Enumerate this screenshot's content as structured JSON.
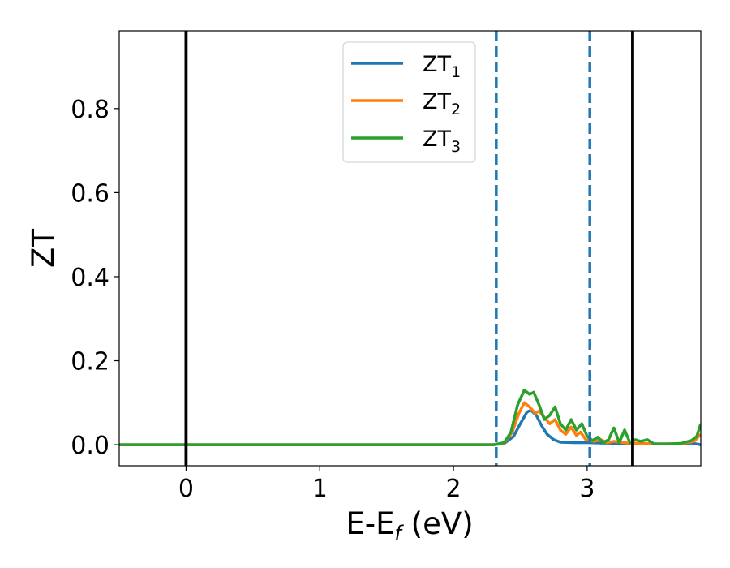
{
  "chart_data": {
    "type": "line",
    "title": "",
    "xlabel": {
      "main": "E-E",
      "sub": "f",
      "suffix": " (eV)"
    },
    "ylabel": "ZT",
    "xlim": [
      -0.5,
      3.85
    ],
    "ylim": [
      -0.05,
      0.985
    ],
    "xticks": [
      0,
      1,
      2,
      3
    ],
    "xtick_labels": [
      "0",
      "1",
      "2",
      "3"
    ],
    "yticks": [
      0.0,
      0.2,
      0.4,
      0.6,
      0.8
    ],
    "ytick_labels": [
      "0.0",
      "0.2",
      "0.4",
      "0.6",
      "0.8"
    ],
    "grid": false,
    "legend_position": "top-center",
    "vlines": [
      {
        "x": 0.0,
        "style": "solid",
        "color": "#000000"
      },
      {
        "x": 3.34,
        "style": "solid",
        "color": "#000000"
      },
      {
        "x": 2.32,
        "style": "dashed",
        "color": "#1f77b4"
      },
      {
        "x": 3.02,
        "style": "dashed",
        "color": "#1f77b4"
      }
    ],
    "series": [
      {
        "name": "ZT",
        "sub": "1",
        "color": "#1f77b4",
        "points": [
          [
            -0.5,
            0
          ],
          [
            2.3,
            0
          ],
          [
            2.38,
            0.003
          ],
          [
            2.45,
            0.02
          ],
          [
            2.5,
            0.05
          ],
          [
            2.55,
            0.078
          ],
          [
            2.58,
            0.082
          ],
          [
            2.62,
            0.07
          ],
          [
            2.66,
            0.045
          ],
          [
            2.7,
            0.025
          ],
          [
            2.75,
            0.012
          ],
          [
            2.8,
            0.006
          ],
          [
            2.9,
            0.005
          ],
          [
            3.0,
            0.005
          ],
          [
            3.1,
            0.004
          ],
          [
            3.3,
            0.003
          ],
          [
            3.5,
            0.002
          ],
          [
            3.7,
            0.002
          ],
          [
            3.78,
            0.004
          ],
          [
            3.85,
            0.0
          ]
        ]
      },
      {
        "name": "ZT",
        "sub": "2",
        "color": "#ff7f0e",
        "points": [
          [
            -0.5,
            0
          ],
          [
            2.3,
            0
          ],
          [
            2.38,
            0.004
          ],
          [
            2.44,
            0.03
          ],
          [
            2.49,
            0.075
          ],
          [
            2.53,
            0.1
          ],
          [
            2.57,
            0.09
          ],
          [
            2.61,
            0.075
          ],
          [
            2.64,
            0.08
          ],
          [
            2.68,
            0.065
          ],
          [
            2.72,
            0.05
          ],
          [
            2.76,
            0.06
          ],
          [
            2.8,
            0.035
          ],
          [
            2.84,
            0.025
          ],
          [
            2.88,
            0.042
          ],
          [
            2.92,
            0.022
          ],
          [
            2.95,
            0.03
          ],
          [
            2.99,
            0.012
          ],
          [
            3.05,
            0.008
          ],
          [
            3.1,
            0.012
          ],
          [
            3.15,
            0.005
          ],
          [
            3.2,
            0.008
          ],
          [
            3.3,
            0.004
          ],
          [
            3.4,
            0.003
          ],
          [
            3.5,
            0.002
          ],
          [
            3.7,
            0.002
          ],
          [
            3.8,
            0.008
          ],
          [
            3.85,
            0.025
          ]
        ]
      },
      {
        "name": "ZT",
        "sub": "3",
        "color": "#2ca02c",
        "points": [
          [
            -0.5,
            0
          ],
          [
            2.3,
            0
          ],
          [
            2.38,
            0.005
          ],
          [
            2.43,
            0.03
          ],
          [
            2.48,
            0.095
          ],
          [
            2.53,
            0.13
          ],
          [
            2.57,
            0.12
          ],
          [
            2.6,
            0.125
          ],
          [
            2.64,
            0.095
          ],
          [
            2.68,
            0.06
          ],
          [
            2.72,
            0.07
          ],
          [
            2.76,
            0.09
          ],
          [
            2.8,
            0.05
          ],
          [
            2.84,
            0.035
          ],
          [
            2.88,
            0.06
          ],
          [
            2.92,
            0.035
          ],
          [
            2.96,
            0.05
          ],
          [
            3.0,
            0.02
          ],
          [
            3.04,
            0.01
          ],
          [
            3.08,
            0.018
          ],
          [
            3.12,
            0.005
          ],
          [
            3.16,
            0.012
          ],
          [
            3.2,
            0.04
          ],
          [
            3.24,
            0.005
          ],
          [
            3.28,
            0.035
          ],
          [
            3.32,
            0.005
          ],
          [
            3.36,
            0.012
          ],
          [
            3.4,
            0.008
          ],
          [
            3.45,
            0.012
          ],
          [
            3.5,
            0.002
          ],
          [
            3.6,
            0.002
          ],
          [
            3.7,
            0.003
          ],
          [
            3.78,
            0.01
          ],
          [
            3.82,
            0.02
          ],
          [
            3.85,
            0.05
          ]
        ]
      }
    ]
  }
}
